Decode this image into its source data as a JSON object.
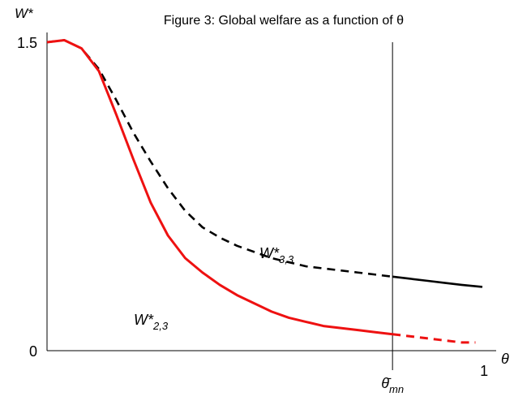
{
  "chart_data": {
    "type": "line",
    "title": "Figure 3: Global welfare as a function of θ",
    "ylabel": "W*",
    "xlabel": "θ",
    "xlim": [
      0,
      1.3
    ],
    "ylim": [
      0,
      1.5
    ],
    "y_ticks": [
      {
        "value": 0,
        "label": "0"
      },
      {
        "value": 1.5,
        "label": "1.5"
      }
    ],
    "x_ticks": [
      {
        "value": 1.0,
        "label": "1"
      }
    ],
    "threshold": {
      "value": 1.0,
      "label_main": "θ̄",
      "label_sub": "mn"
    },
    "series": [
      {
        "name": "W*3,3",
        "label_main": "W*",
        "label_sub": "3,3",
        "color": "#000000",
        "dashed_before_threshold": true,
        "points": [
          [
            0.0,
            1.5
          ],
          [
            0.05,
            1.51
          ],
          [
            0.1,
            1.47
          ],
          [
            0.15,
            1.37
          ],
          [
            0.2,
            1.22
          ],
          [
            0.25,
            1.06
          ],
          [
            0.3,
            0.92
          ],
          [
            0.35,
            0.79
          ],
          [
            0.4,
            0.68
          ],
          [
            0.45,
            0.6
          ],
          [
            0.5,
            0.55
          ],
          [
            0.55,
            0.51
          ],
          [
            0.6,
            0.48
          ],
          [
            0.65,
            0.45
          ],
          [
            0.7,
            0.43
          ],
          [
            0.75,
            0.41
          ],
          [
            0.8,
            0.4
          ],
          [
            0.85,
            0.39
          ],
          [
            0.9,
            0.38
          ],
          [
            0.95,
            0.37
          ],
          [
            1.0,
            0.36
          ],
          [
            1.05,
            0.35
          ],
          [
            1.1,
            0.34
          ],
          [
            1.15,
            0.33
          ],
          [
            1.2,
            0.32
          ],
          [
            1.26,
            0.31
          ]
        ]
      },
      {
        "name": "W*2,3",
        "label_main": "W*",
        "label_sub": "2,3",
        "color": "#ee1111",
        "dashed_after_threshold": true,
        "points": [
          [
            0.0,
            1.5
          ],
          [
            0.05,
            1.51
          ],
          [
            0.1,
            1.47
          ],
          [
            0.15,
            1.36
          ],
          [
            0.2,
            1.15
          ],
          [
            0.25,
            0.93
          ],
          [
            0.3,
            0.72
          ],
          [
            0.35,
            0.56
          ],
          [
            0.4,
            0.45
          ],
          [
            0.45,
            0.38
          ],
          [
            0.5,
            0.32
          ],
          [
            0.55,
            0.27
          ],
          [
            0.6,
            0.23
          ],
          [
            0.65,
            0.19
          ],
          [
            0.7,
            0.16
          ],
          [
            0.75,
            0.14
          ],
          [
            0.8,
            0.12
          ],
          [
            0.85,
            0.11
          ],
          [
            0.9,
            0.1
          ],
          [
            0.95,
            0.09
          ],
          [
            1.0,
            0.08
          ],
          [
            1.05,
            0.07
          ],
          [
            1.1,
            0.06
          ],
          [
            1.15,
            0.05
          ],
          [
            1.2,
            0.04
          ],
          [
            1.24,
            0.04
          ]
        ]
      }
    ]
  }
}
